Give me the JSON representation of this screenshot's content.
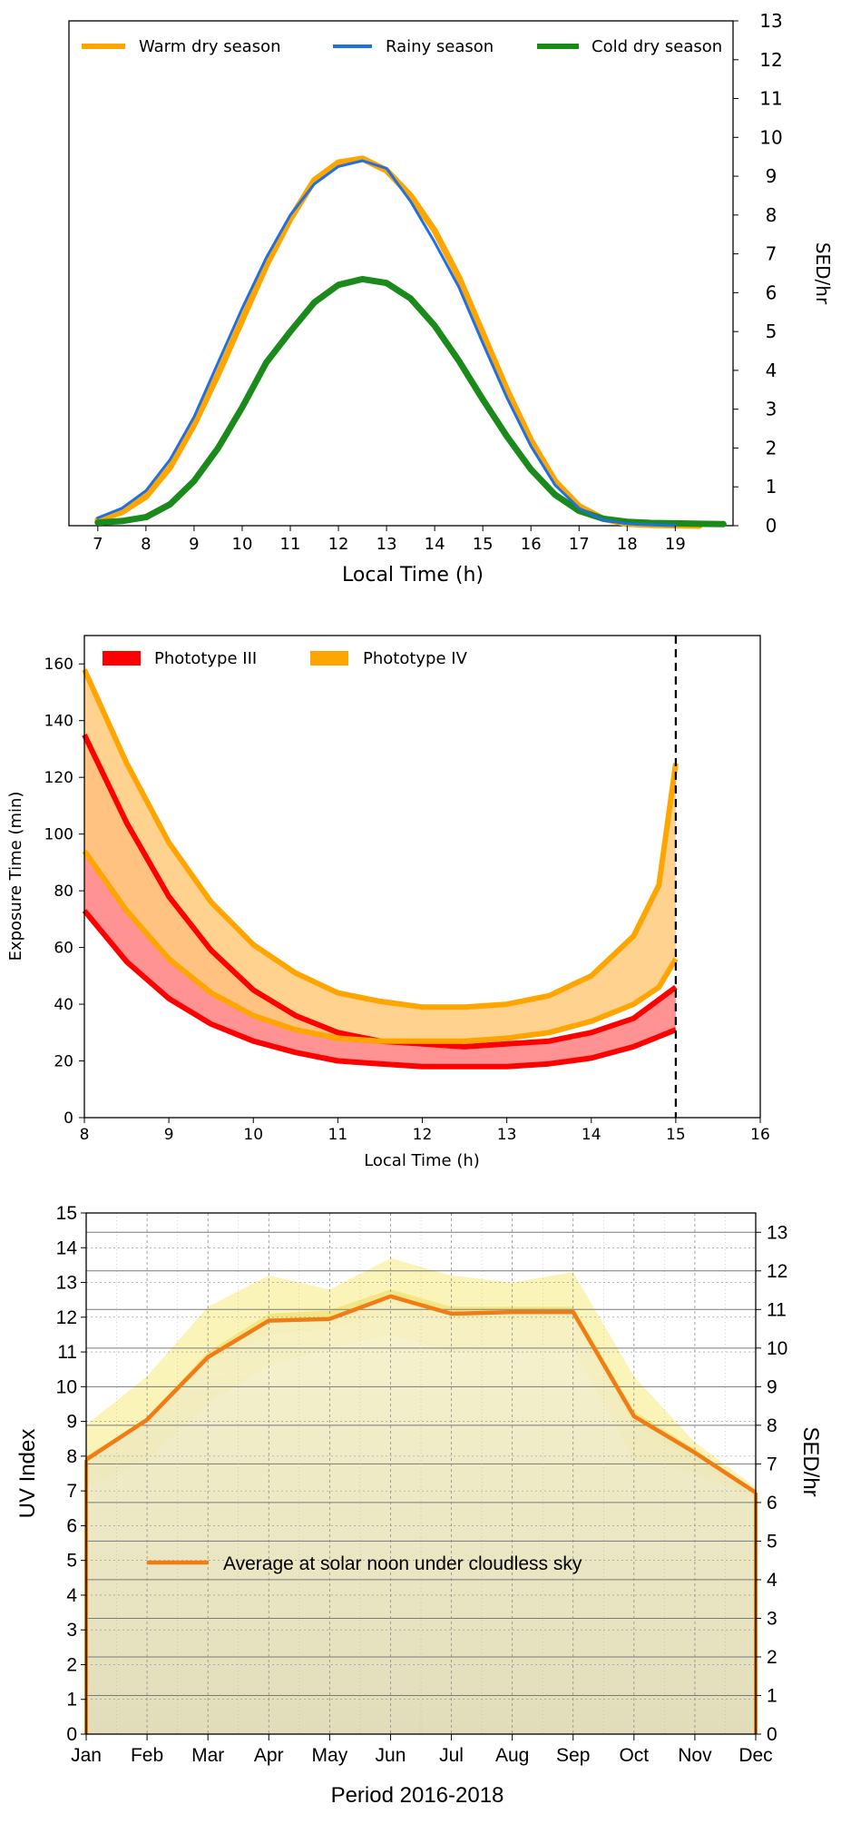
{
  "chart_data": [
    {
      "type": "line",
      "title": "",
      "xlabel": "Local Time (h)",
      "ylabel": "SED/hr",
      "xlim": [
        6.4,
        20.2
      ],
      "ylim": [
        0,
        13
      ],
      "x_ticks": [
        7,
        8,
        9,
        10,
        11,
        12,
        13,
        14,
        15,
        16,
        17,
        18,
        19
      ],
      "y_ticks": [
        0,
        1,
        2,
        3,
        4,
        5,
        6,
        7,
        8,
        9,
        10,
        11,
        12,
        13
      ],
      "y_axis_side": "right",
      "grid": false,
      "legend_position": "top",
      "series": [
        {
          "name": "Warm dry season",
          "color": "#FFA500",
          "x": [
            7.0,
            7.5,
            8.0,
            8.5,
            9.0,
            9.5,
            10.0,
            10.5,
            11.0,
            11.5,
            12.0,
            12.5,
            13.0,
            13.5,
            14.0,
            14.5,
            15.0,
            15.5,
            16.0,
            16.5,
            17.0,
            17.5,
            18.0,
            18.5,
            19.0,
            19.5
          ],
          "y": [
            0.15,
            0.35,
            0.75,
            1.5,
            2.6,
            3.9,
            5.3,
            6.7,
            7.9,
            8.9,
            9.35,
            9.45,
            9.15,
            8.5,
            7.6,
            6.4,
            4.95,
            3.5,
            2.2,
            1.15,
            0.5,
            0.18,
            0.05,
            0.02,
            0.01,
            0.0
          ]
        },
        {
          "name": "Rainy season",
          "color": "#1F6FE5",
          "x": [
            7.0,
            7.5,
            8.0,
            8.5,
            9.0,
            9.5,
            10.0,
            10.5,
            11.0,
            11.5,
            12.0,
            12.5,
            13.0,
            13.5,
            14.0,
            14.5,
            15.0,
            15.5,
            16.0,
            16.5,
            17.0,
            17.5,
            18.0,
            18.5,
            19.0
          ],
          "y": [
            0.2,
            0.45,
            0.9,
            1.7,
            2.8,
            4.2,
            5.6,
            6.9,
            8.0,
            8.8,
            9.25,
            9.4,
            9.2,
            8.35,
            7.3,
            6.15,
            4.7,
            3.3,
            2.05,
            1.05,
            0.45,
            0.15,
            0.05,
            0.02,
            0.0
          ]
        },
        {
          "name": "Cold dry season",
          "color": "#1A8A1A",
          "x": [
            7.0,
            7.5,
            8.0,
            8.5,
            9.0,
            9.5,
            10.0,
            10.5,
            11.0,
            11.5,
            12.0,
            12.5,
            13.0,
            13.5,
            14.0,
            14.5,
            15.0,
            15.5,
            16.0,
            16.5,
            17.0,
            17.5,
            18.0,
            18.5,
            19.0,
            19.5,
            20.0
          ],
          "y": [
            0.08,
            0.12,
            0.22,
            0.55,
            1.15,
            2.0,
            3.05,
            4.2,
            5.0,
            5.75,
            6.2,
            6.35,
            6.25,
            5.85,
            5.15,
            4.25,
            3.25,
            2.3,
            1.45,
            0.8,
            0.38,
            0.18,
            0.1,
            0.07,
            0.06,
            0.05,
            0.04
          ]
        }
      ]
    },
    {
      "type": "area",
      "title": "",
      "xlabel": "Local Time (h)",
      "ylabel": "Exposure Time (min)",
      "xlim": [
        8,
        16
      ],
      "ylim": [
        0,
        170
      ],
      "x_ticks": [
        8,
        9,
        10,
        11,
        12,
        13,
        14,
        15,
        16
      ],
      "y_ticks": [
        0,
        20,
        40,
        60,
        80,
        100,
        120,
        140,
        160
      ],
      "grid": false,
      "legend_position": "top-left",
      "vline_x": 15,
      "series": [
        {
          "name": "Phototype III",
          "color": "#FF0000",
          "x": [
            8.0,
            8.5,
            9.0,
            9.5,
            10.0,
            10.5,
            11.0,
            11.5,
            12.0,
            12.5,
            13.0,
            13.5,
            14.0,
            14.5,
            15.0
          ],
          "lower": [
            73,
            55,
            42,
            33,
            27,
            23,
            20,
            19,
            18,
            18,
            18,
            19,
            21,
            25,
            31
          ],
          "upper": [
            135,
            104,
            78,
            59,
            45,
            36,
            30,
            27,
            26,
            25,
            26,
            27,
            30,
            35,
            46
          ]
        },
        {
          "name": "Phototype IV",
          "color": "#FFA500",
          "x": [
            8.0,
            8.5,
            9.0,
            9.5,
            10.0,
            10.5,
            11.0,
            11.5,
            12.0,
            12.5,
            13.0,
            13.5,
            14.0,
            14.5,
            14.8,
            15.0
          ],
          "lower": [
            94,
            73,
            56,
            44,
            36,
            31,
            28,
            27,
            27,
            27,
            28,
            30,
            34,
            40,
            46,
            56
          ],
          "upper": [
            158,
            125,
            97,
            76,
            61,
            51,
            44,
            41,
            39,
            39,
            40,
            43,
            50,
            64,
            82,
            125
          ]
        }
      ]
    },
    {
      "type": "line",
      "title": "",
      "xlabel": "Period 2016-2018",
      "ylabel": "UV Index",
      "ylabel_right": "SED/hr",
      "ylim": [
        0,
        15
      ],
      "ylim_right": [
        0,
        13.5
      ],
      "y_ticks": [
        0,
        1,
        2,
        3,
        4,
        5,
        6,
        7,
        8,
        9,
        10,
        11,
        12,
        13,
        14,
        15
      ],
      "y_ticks_right": [
        0,
        1,
        2,
        3,
        4,
        5,
        6,
        7,
        8,
        9,
        10,
        11,
        12,
        13
      ],
      "grid": true,
      "legend_position": "center-left",
      "categories": [
        "Jan",
        "Feb",
        "Mar",
        "Apr",
        "May",
        "Jun",
        "Jul",
        "Aug",
        "Sep",
        "Oct",
        "Nov",
        "Dec"
      ],
      "band_outer_low": [
        7.1,
        7.9,
        9.5,
        10.6,
        11.1,
        11.5,
        11.0,
        11.1,
        11.1,
        7.9,
        7.5,
        6.8
      ],
      "band_outer_high": [
        8.9,
        10.3,
        12.3,
        13.2,
        12.8,
        13.7,
        13.2,
        13.0,
        13.3,
        10.3,
        8.4,
        7.1
      ],
      "band_inner_low": [
        7.8,
        8.9,
        10.7,
        11.5,
        11.7,
        12.1,
        11.9,
        11.9,
        11.9,
        8.9,
        7.9,
        6.9
      ],
      "band_inner_high": [
        8.0,
        9.1,
        11.0,
        12.1,
        12.2,
        12.8,
        12.3,
        12.3,
        12.3,
        9.3,
        8.2,
        7.0
      ],
      "series": [
        {
          "name": "Average at solar noon under cloudless sky",
          "color": "#F07C16",
          "values": [
            7.9,
            9.05,
            10.85,
            11.9,
            11.95,
            12.6,
            12.1,
            12.15,
            12.15,
            9.15,
            8.1,
            6.95
          ]
        }
      ]
    }
  ]
}
